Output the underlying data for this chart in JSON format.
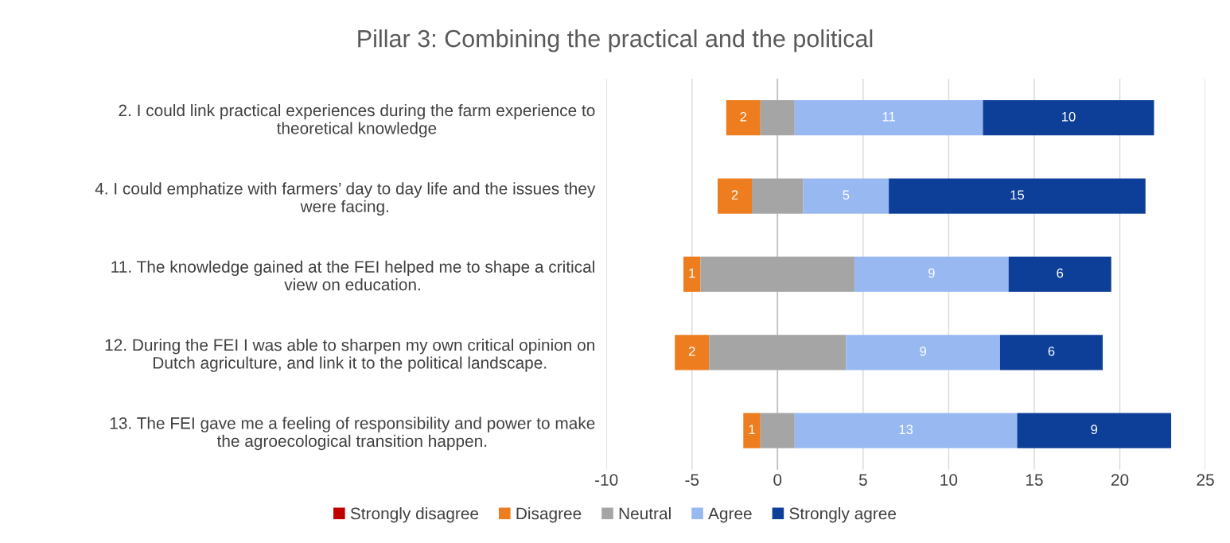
{
  "chart_data": {
    "type": "bar",
    "title": "Pillar 3: Combining the practical and the political",
    "orientation": "horizontal",
    "categories": [
      "2. I could link practical experiences during the farm experience to\ntheoretical knowledge",
      "4. I could emphatize with farmers’ day to day life and the issues they\nwere facing.",
      "11. The knowledge gained at the FEI helped me to shape a critical\nview on education.",
      "12. During the FEI I was able to sharpen my own critical opinion on\nDutch agriculture, and link it to the political landscape.",
      "13. The FEI gave me a feeling of responsibility and power to make\nthe agroecological transition happen."
    ],
    "series": [
      {
        "name": "Strongly disagree",
        "color": "#c00000",
        "values": [
          null,
          null,
          null,
          null,
          null
        ]
      },
      {
        "name": "Disagree",
        "color": "#ed7d1f",
        "base": [
          -3,
          -3.5,
          -5.5,
          -6,
          -2
        ],
        "values": [
          2,
          2,
          1,
          2,
          1
        ],
        "value_labels": [
          "2",
          "2",
          "1",
          "2",
          "1"
        ]
      },
      {
        "name": "Neutral",
        "color": "#a5a5a5",
        "base": [
          -1,
          -1.5,
          -4.5,
          -4,
          -1
        ],
        "values": [
          2,
          3,
          9,
          8,
          2
        ],
        "value_labels": [
          null,
          null,
          null,
          null,
          null
        ]
      },
      {
        "name": "Agree",
        "color": "#98b8f2",
        "base": [
          1,
          1.5,
          4.5,
          4,
          1
        ],
        "values": [
          11,
          5,
          9,
          9,
          13
        ],
        "value_labels": [
          "11",
          "5",
          "9",
          "9",
          "13"
        ]
      },
      {
        "name": "Strongly agree",
        "color": "#0e3f98",
        "base": [
          12,
          6.5,
          13.5,
          13,
          14
        ],
        "values": [
          10,
          15,
          6,
          6,
          9
        ],
        "value_labels": [
          "10",
          "15",
          "6",
          "6",
          "9"
        ]
      }
    ],
    "xlim": [
      -10,
      25
    ],
    "xticks": [
      -10,
      -5,
      0,
      5,
      10,
      15,
      20,
      25
    ],
    "grid": "x",
    "legend": "bottom"
  }
}
